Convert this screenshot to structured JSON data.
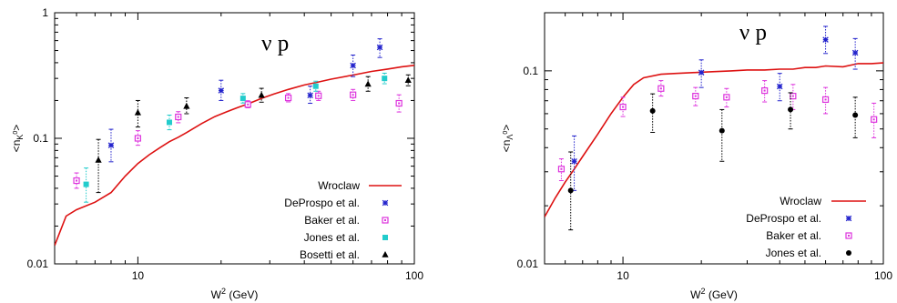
{
  "colors": {
    "model": "#dd1111",
    "deprospo": "#2222cc",
    "baker": "#dd33dd",
    "jones": "#22cccc",
    "jones_black": "#000000",
    "bosetti": "#000000"
  },
  "chart_data": [
    {
      "type": "scatter",
      "xscale": "log",
      "yscale": "log",
      "xlim": [
        5,
        100
      ],
      "ylim": [
        0.01,
        1
      ],
      "xlabel": "W",
      "xlabel_sup": "2",
      "xlabel_unit": "(GeV)",
      "ylabel": "<n",
      "ylabel_sub": "K",
      "ylabel_sub2": "0",
      "ylabel_end": ">",
      "xticks": [
        {
          "value": 10,
          "label": "10"
        },
        {
          "value": 100,
          "label": "100"
        }
      ],
      "yticks": [
        {
          "value": 0.01,
          "label": "0.01"
        },
        {
          "value": 0.1,
          "label": "0.1"
        },
        {
          "value": 1,
          "label": "1"
        }
      ],
      "annotation": "ν p",
      "annotation_pos": [
        28,
        0.5
      ],
      "legend_position": "bottom-right",
      "model": {
        "name": "Wroclaw",
        "color_key": "model",
        "x": [
          5,
          5.5,
          6,
          7,
          8,
          9,
          10,
          11,
          12,
          13,
          14,
          15,
          17,
          19,
          21,
          23,
          25,
          28,
          31,
          35,
          40,
          45,
          50,
          60,
          70,
          80,
          90,
          100
        ],
        "y": [
          0.014,
          0.024,
          0.027,
          0.031,
          0.037,
          0.05,
          0.063,
          0.074,
          0.084,
          0.094,
          0.102,
          0.111,
          0.131,
          0.149,
          0.163,
          0.176,
          0.188,
          0.208,
          0.225,
          0.245,
          0.266,
          0.281,
          0.296,
          0.319,
          0.341,
          0.356,
          0.371,
          0.381
        ]
      },
      "series": [
        {
          "name": "DeProspo et al.",
          "marker": "star",
          "color_key": "deprospo",
          "points": [
            {
              "x": 8,
              "y": 0.088,
              "lo": 0.065,
              "hi": 0.118
            },
            {
              "x": 20,
              "y": 0.24,
              "lo": 0.2,
              "hi": 0.29
            },
            {
              "x": 42,
              "y": 0.22,
              "lo": 0.19,
              "hi": 0.26
            },
            {
              "x": 60,
              "y": 0.38,
              "lo": 0.31,
              "hi": 0.46
            },
            {
              "x": 75,
              "y": 0.53,
              "lo": 0.44,
              "hi": 0.62
            }
          ]
        },
        {
          "name": "Baker et al.",
          "marker": "square-open",
          "color_key": "baker",
          "points": [
            {
              "x": 6,
              "y": 0.046,
              "lo": 0.04,
              "hi": 0.053
            },
            {
              "x": 10,
              "y": 0.1,
              "lo": 0.088,
              "hi": 0.115
            },
            {
              "x": 14,
              "y": 0.148,
              "lo": 0.133,
              "hi": 0.163
            },
            {
              "x": 25,
              "y": 0.186,
              "lo": 0.175,
              "hi": 0.199
            },
            {
              "x": 35,
              "y": 0.21,
              "lo": 0.195,
              "hi": 0.227
            },
            {
              "x": 45,
              "y": 0.218,
              "lo": 0.2,
              "hi": 0.237
            },
            {
              "x": 60,
              "y": 0.222,
              "lo": 0.2,
              "hi": 0.245
            },
            {
              "x": 88,
              "y": 0.19,
              "lo": 0.162,
              "hi": 0.222
            }
          ]
        },
        {
          "name": "Jones et al.",
          "marker": "square-filled",
          "color_key": "jones",
          "points": [
            {
              "x": 6.5,
              "y": 0.043,
              "lo": 0.031,
              "hi": 0.058
            },
            {
              "x": 13,
              "y": 0.134,
              "lo": 0.117,
              "hi": 0.153
            },
            {
              "x": 24,
              "y": 0.208,
              "lo": 0.191,
              "hi": 0.227
            },
            {
              "x": 44,
              "y": 0.26,
              "lo": 0.237,
              "hi": 0.285
            },
            {
              "x": 78,
              "y": 0.3,
              "lo": 0.272,
              "hi": 0.33
            }
          ]
        },
        {
          "name": "Bosetti et al.",
          "marker": "triangle",
          "color_key": "bosetti",
          "points": [
            {
              "x": 7.2,
              "y": 0.067,
              "lo": 0.037,
              "hi": 0.098
            },
            {
              "x": 10,
              "y": 0.16,
              "lo": 0.123,
              "hi": 0.2
            },
            {
              "x": 15,
              "y": 0.18,
              "lo": 0.157,
              "hi": 0.21
            },
            {
              "x": 28,
              "y": 0.22,
              "lo": 0.194,
              "hi": 0.25
            },
            {
              "x": 68,
              "y": 0.27,
              "lo": 0.237,
              "hi": 0.31
            },
            {
              "x": 95,
              "y": 0.29,
              "lo": 0.262,
              "hi": 0.32
            }
          ]
        }
      ]
    },
    {
      "type": "scatter",
      "xscale": "log",
      "yscale": "log",
      "xlim": [
        5,
        100
      ],
      "ylim": [
        0.01,
        0.2
      ],
      "xlabel": "W",
      "xlabel_sup": "2",
      "xlabel_unit": "(GeV)",
      "ylabel": "<n",
      "ylabel_sub": "Λ",
      "ylabel_sub2": "0",
      "ylabel_end": ">",
      "xticks": [
        {
          "value": 10,
          "label": "10"
        },
        {
          "value": 100,
          "label": "100"
        }
      ],
      "yticks": [
        {
          "value": 0.01,
          "label": "0.01"
        },
        {
          "value": 0.1,
          "label": "0.1"
        }
      ],
      "annotation": "ν p",
      "annotation_pos": [
        28,
        0.145
      ],
      "legend_position": "bottom-right",
      "model": {
        "name": "Wroclaw",
        "color_key": "model",
        "x": [
          5,
          5.5,
          6,
          6.5,
          7,
          8,
          9,
          10,
          11,
          12,
          14,
          16,
          19,
          22,
          26,
          30,
          35,
          40,
          45,
          50,
          55,
          60,
          70,
          80,
          90,
          100
        ],
        "y": [
          0.0175,
          0.022,
          0.0265,
          0.031,
          0.036,
          0.047,
          0.06,
          0.073,
          0.085,
          0.092,
          0.096,
          0.097,
          0.098,
          0.099,
          0.1,
          0.101,
          0.101,
          0.102,
          0.102,
          0.104,
          0.104,
          0.106,
          0.105,
          0.109,
          0.109,
          0.11
        ]
      },
      "series": [
        {
          "name": "DeProspo et al.",
          "marker": "star",
          "color_key": "deprospo",
          "points": [
            {
              "x": 6.5,
              "y": 0.034,
              "lo": 0.024,
              "hi": 0.046
            },
            {
              "x": 20,
              "y": 0.098,
              "lo": 0.082,
              "hi": 0.114
            },
            {
              "x": 40,
              "y": 0.083,
              "lo": 0.07,
              "hi": 0.097
            },
            {
              "x": 60,
              "y": 0.145,
              "lo": 0.123,
              "hi": 0.17
            },
            {
              "x": 78,
              "y": 0.124,
              "lo": 0.102,
              "hi": 0.147
            }
          ]
        },
        {
          "name": "Baker et al.",
          "marker": "square-open",
          "color_key": "baker",
          "points": [
            {
              "x": 5.8,
              "y": 0.031,
              "lo": 0.027,
              "hi": 0.035
            },
            {
              "x": 10,
              "y": 0.065,
              "lo": 0.058,
              "hi": 0.073
            },
            {
              "x": 14,
              "y": 0.081,
              "lo": 0.074,
              "hi": 0.089
            },
            {
              "x": 19,
              "y": 0.074,
              "lo": 0.066,
              "hi": 0.082
            },
            {
              "x": 25,
              "y": 0.073,
              "lo": 0.065,
              "hi": 0.081
            },
            {
              "x": 35,
              "y": 0.079,
              "lo": 0.069,
              "hi": 0.089
            },
            {
              "x": 45,
              "y": 0.074,
              "lo": 0.063,
              "hi": 0.085
            },
            {
              "x": 60,
              "y": 0.071,
              "lo": 0.06,
              "hi": 0.082
            },
            {
              "x": 92,
              "y": 0.056,
              "lo": 0.045,
              "hi": 0.068
            }
          ]
        },
        {
          "name": "Jones et al.",
          "marker": "circle",
          "color_key": "jones_black",
          "points": [
            {
              "x": 6.3,
              "y": 0.024,
              "lo": 0.015,
              "hi": 0.038
            },
            {
              "x": 13,
              "y": 0.062,
              "lo": 0.048,
              "hi": 0.076
            },
            {
              "x": 24,
              "y": 0.049,
              "lo": 0.034,
              "hi": 0.063
            },
            {
              "x": 44,
              "y": 0.063,
              "lo": 0.05,
              "hi": 0.077
            },
            {
              "x": 78,
              "y": 0.059,
              "lo": 0.045,
              "hi": 0.073
            }
          ]
        }
      ]
    }
  ]
}
